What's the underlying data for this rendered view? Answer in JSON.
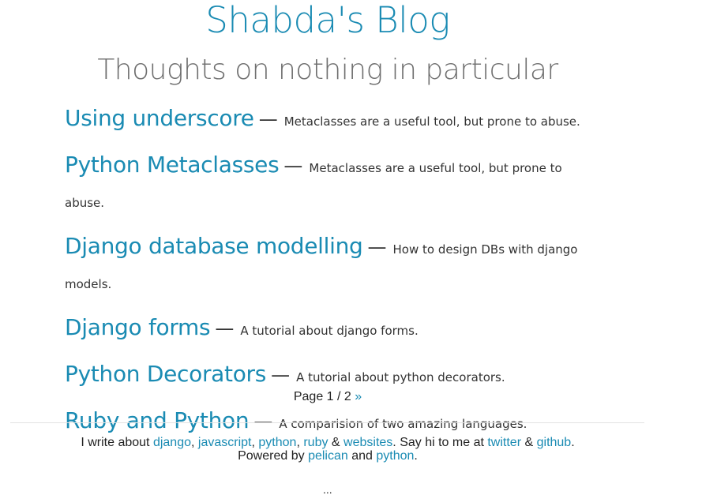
{
  "header": {
    "title": "Shabda's Blog",
    "tagline": "Thoughts on nothing in particular"
  },
  "posts": [
    {
      "title": "Using underscore",
      "description": "Metaclasses are a useful tool, but prone to abuse."
    },
    {
      "title": "Python Metaclasses",
      "description": "Metaclasses are a useful tool, but prone to abuse."
    },
    {
      "title": "Django database modelling",
      "description": "How to design DBs with django models."
    },
    {
      "title": "Django forms",
      "description": "A tutorial about django forms."
    },
    {
      "title": "Python Decorators",
      "description": "A tutorial about python decorators."
    },
    {
      "title": "Ruby and Python",
      "description": "A comparision of two amazing languages."
    }
  ],
  "separator": "—",
  "pager": {
    "text": "Page 1 / 2",
    "next_label": "»"
  },
  "footer": {
    "intro": "I write about",
    "topics": [
      "django",
      "javascript",
      "python",
      "ruby",
      "websites"
    ],
    "comma": ",",
    "amp": "&",
    "say_hi": ". Say hi to me at",
    "twitter": "twitter",
    "github": "github",
    "period": ".",
    "powered_by": "Powered by",
    "pelican": "pelican",
    "and": "and",
    "python": "python"
  },
  "ellipsis": "..."
}
